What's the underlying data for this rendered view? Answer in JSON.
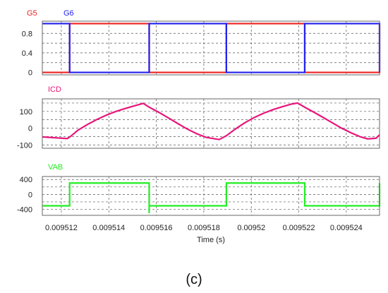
{
  "caption": "(c)",
  "chart_data": {
    "type": "line",
    "xlabel": "Time (s)",
    "xlim": [
      0.0095112,
      0.0095254
    ],
    "x_tick_labels": [
      "0.009512",
      "0.009514",
      "0.009516",
      "0.009518",
      "0.00952",
      "0.009522",
      "0.009524"
    ],
    "grid": true,
    "panels": [
      {
        "ylim": [
          -0.05,
          1.05
        ],
        "y_tick_labels": [
          "0",
          "0.4",
          "0.8"
        ],
        "y_ticks": [
          0,
          0.4,
          0.8
        ],
        "series": [
          {
            "name": "G5",
            "color": "#ee2222",
            "x": [
              0.0095112,
              0.00951235,
              0.00951235,
              0.0095157,
              0.0095157,
              0.00951895,
              0.00951895,
              0.00952225,
              0.00952225,
              0.00952545,
              0.00952545,
              0.0095254
            ],
            "y": [
              0,
              0,
              1,
              1,
              0,
              0,
              1,
              1,
              0,
              0,
              1,
              1
            ]
          },
          {
            "name": "G6",
            "color": "#2222ee",
            "x": [
              0.0095112,
              0.00951235,
              0.00951235,
              0.0095157,
              0.0095157,
              0.00951895,
              0.00951895,
              0.00952225,
              0.00952225,
              0.00952545,
              0.00952545,
              0.0095254
            ],
            "y": [
              1,
              1,
              0,
              0,
              1,
              1,
              0,
              0,
              1,
              1,
              0,
              0
            ]
          }
        ]
      },
      {
        "ylim": [
          -120,
          175
        ],
        "y_tick_labels": [
          "-100",
          "0",
          "100"
        ],
        "y_ticks": [
          -100,
          0,
          100
        ],
        "series": [
          {
            "name": "ICD",
            "color": "#e8167a",
            "x": [
              0.0095112,
              0.0095118,
              0.00951225,
              0.0095124,
              0.0095127,
              0.0095131,
              0.0095135,
              0.0095139,
              0.0095143,
              0.0095147,
              0.0095151,
              0.00951545,
              0.0095157,
              0.0095161,
              0.0095165,
              0.0095169,
              0.0095173,
              0.0095177,
              0.0095181,
              0.00951865,
              0.00951895,
              0.0095193,
              0.0095197,
              0.0095201,
              0.0095205,
              0.0095209,
              0.0095213,
              0.0095217,
              0.00952195,
              0.00952225,
              0.0095226,
              0.009523,
              0.0095234,
              0.0095238,
              0.0095242,
              0.0095246,
              0.0095249,
              0.00952525,
              0.0095254
            ],
            "y": [
              -52,
              -58,
              -62,
              -48,
              -12,
              22,
              52,
              78,
              100,
              118,
              134,
              148,
              125,
              95,
              62,
              28,
              -5,
              -33,
              -55,
              -68,
              -45,
              -8,
              30,
              62,
              88,
              110,
              128,
              144,
              150,
              125,
              98,
              66,
              33,
              0,
              -28,
              -52,
              -64,
              -60,
              -40
            ]
          }
        ]
      },
      {
        "ylim": [
          -560,
          480
        ],
        "y_tick_labels": [
          "-400",
          "0",
          "400"
        ],
        "y_ticks": [
          -400,
          0,
          400
        ],
        "series": [
          {
            "name": "VAB",
            "color": "#22ee22",
            "x": [
              0.0095112,
              0.00951235,
              0.00951235,
              0.0095157,
              0.0095157,
              0.0095157,
              0.00951895,
              0.00951895,
              0.00952225,
              0.00952225,
              0.00952545,
              0.00952545,
              0.0095254
            ],
            "y": [
              -305,
              -305,
              305,
              305,
              -500,
              -305,
              -305,
              305,
              305,
              -305,
              -305,
              305,
              305
            ]
          }
        ]
      }
    ]
  }
}
